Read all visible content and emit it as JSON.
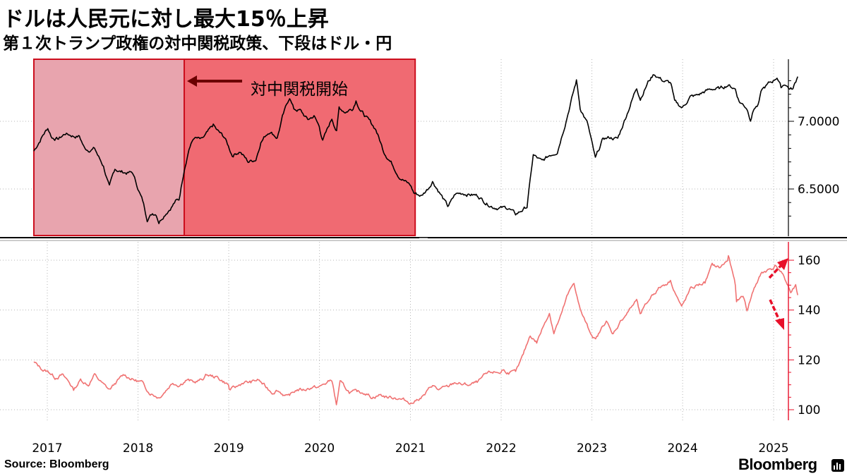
{
  "title": "ドルは人民元に対し最大15％上昇",
  "subtitle": "第１次トランプ政権の対中関税政策、下段はドル・円",
  "source": "Source:  Bloomberg",
  "brand": "Bloomberg",
  "colors": {
    "top_series": "#000000",
    "bottom_series": "#f07272",
    "shade_pre": "#e8a4ae",
    "shade_tariff": "#f06a72",
    "shade_border": "#cc0f1e",
    "annotation_arrow": "#6b0000",
    "right_arrows": "#e8102a"
  },
  "chart_data": [
    {
      "type": "line",
      "series": [
        {
          "name": "",
          "values_note": ""
        }
      ],
      "points": [
        [
          "2016-11-08",
          6.78
        ],
        [
          "2016-12-15",
          6.9
        ],
        [
          "2017-01-03",
          6.95
        ],
        [
          "2017-01-20",
          6.88
        ],
        [
          "2017-02-15",
          6.87
        ],
        [
          "2017-03-15",
          6.91
        ],
        [
          "2017-04-20",
          6.89
        ],
        [
          "2017-05-10",
          6.89
        ],
        [
          "2017-05-31",
          6.8
        ],
        [
          "2017-06-15",
          6.79
        ],
        [
          "2017-07-10",
          6.8
        ],
        [
          "2017-07-31",
          6.72
        ],
        [
          "2017-08-15",
          6.67
        ],
        [
          "2017-09-08",
          6.51
        ],
        [
          "2017-09-30",
          6.65
        ],
        [
          "2017-10-20",
          6.63
        ],
        [
          "2017-11-15",
          6.62
        ],
        [
          "2017-12-10",
          6.62
        ],
        [
          "2017-12-31",
          6.51
        ],
        [
          "2018-01-20",
          6.41
        ],
        [
          "2018-02-07",
          6.28
        ],
        [
          "2018-02-28",
          6.32
        ],
        [
          "2018-03-15",
          6.32
        ],
        [
          "2018-03-26",
          6.26
        ],
        [
          "2018-04-20",
          6.32
        ],
        [
          "2018-05-15",
          6.37
        ],
        [
          "2018-06-01",
          6.41
        ],
        [
          "2018-06-15",
          6.42
        ],
        [
          "2018-07-06",
          6.65
        ],
        [
          "2018-07-25",
          6.8
        ],
        [
          "2018-08-15",
          6.88
        ],
        [
          "2018-09-15",
          6.86
        ],
        [
          "2018-10-15",
          6.93
        ],
        [
          "2018-10-31",
          6.97
        ],
        [
          "2018-11-15",
          6.93
        ],
        [
          "2018-12-15",
          6.88
        ],
        [
          "2019-01-15",
          6.75
        ],
        [
          "2019-02-15",
          6.78
        ],
        [
          "2019-03-20",
          6.7
        ],
        [
          "2019-04-20",
          6.72
        ],
        [
          "2019-05-10",
          6.85
        ],
        [
          "2019-05-31",
          6.9
        ],
        [
          "2019-06-15",
          6.93
        ],
        [
          "2019-07-15",
          6.88
        ],
        [
          "2019-08-05",
          7.03
        ],
        [
          "2019-09-03",
          7.18
        ],
        [
          "2019-09-20",
          7.09
        ],
        [
          "2019-10-15",
          7.08
        ],
        [
          "2019-11-15",
          7.01
        ],
        [
          "2019-12-10",
          7.04
        ],
        [
          "2019-12-31",
          6.96
        ],
        [
          "2020-01-14",
          6.86
        ],
        [
          "2020-01-31",
          6.93
        ],
        [
          "2020-02-20",
          7.02
        ],
        [
          "2020-03-10",
          6.93
        ],
        [
          "2020-03-20",
          7.1
        ],
        [
          "2020-04-15",
          7.07
        ],
        [
          "2020-05-15",
          7.1
        ],
        [
          "2020-05-27",
          7.16
        ],
        [
          "2020-06-15",
          7.08
        ],
        [
          "2020-07-15",
          7.01
        ],
        [
          "2020-08-15",
          6.94
        ],
        [
          "2020-09-15",
          6.78
        ],
        [
          "2020-10-15",
          6.7
        ],
        [
          "2020-11-15",
          6.6
        ],
        [
          "2020-12-15",
          6.55
        ],
        [
          "2020-12-31",
          6.53
        ],
        [
          "2021-01-15",
          6.47
        ],
        [
          "2021-02-15",
          6.45
        ],
        [
          "2021-03-15",
          6.51
        ],
        [
          "2021-03-31",
          6.56
        ],
        [
          "2021-04-30",
          6.47
        ],
        [
          "2021-05-31",
          6.37
        ],
        [
          "2021-06-15",
          6.41
        ],
        [
          "2021-06-30",
          6.46
        ],
        [
          "2021-07-31",
          6.47
        ],
        [
          "2021-08-31",
          6.46
        ],
        [
          "2021-09-30",
          6.45
        ],
        [
          "2021-10-31",
          6.4
        ],
        [
          "2021-11-30",
          6.37
        ],
        [
          "2021-12-31",
          6.36
        ],
        [
          "2022-01-31",
          6.36
        ],
        [
          "2022-02-28",
          6.31
        ],
        [
          "2022-03-31",
          6.35
        ],
        [
          "2022-04-15",
          6.37
        ],
        [
          "2022-05-10",
          6.75
        ],
        [
          "2022-06-15",
          6.7
        ],
        [
          "2022-07-15",
          6.75
        ],
        [
          "2022-08-15",
          6.78
        ],
        [
          "2022-09-15",
          6.98
        ],
        [
          "2022-10-31",
          7.3
        ],
        [
          "2022-11-15",
          7.1
        ],
        [
          "2022-12-15",
          6.98
        ],
        [
          "2023-01-15",
          6.72
        ],
        [
          "2023-02-15",
          6.87
        ],
        [
          "2023-03-15",
          6.88
        ],
        [
          "2023-04-15",
          6.87
        ],
        [
          "2023-05-31",
          7.1
        ],
        [
          "2023-06-30",
          7.25
        ],
        [
          "2023-07-15",
          7.17
        ],
        [
          "2023-08-15",
          7.29
        ],
        [
          "2023-09-08",
          7.35
        ],
        [
          "2023-10-15",
          7.3
        ],
        [
          "2023-11-15",
          7.28
        ],
        [
          "2023-11-30",
          7.14
        ],
        [
          "2023-12-31",
          7.1
        ],
        [
          "2024-01-31",
          7.18
        ],
        [
          "2024-02-29",
          7.19
        ],
        [
          "2024-03-31",
          7.22
        ],
        [
          "2024-04-30",
          7.24
        ],
        [
          "2024-05-31",
          7.24
        ],
        [
          "2024-06-30",
          7.27
        ],
        [
          "2024-07-31",
          7.24
        ],
        [
          "2024-08-15",
          7.15
        ],
        [
          "2024-09-15",
          7.1
        ],
        [
          "2024-09-30",
          7.02
        ],
        [
          "2024-10-15",
          7.1
        ],
        [
          "2024-10-31",
          7.12
        ],
        [
          "2024-11-15",
          7.23
        ],
        [
          "2024-12-15",
          7.28
        ],
        [
          "2024-12-31",
          7.3
        ],
        [
          "2025-01-15",
          7.33
        ],
        [
          "2025-01-31",
          7.25
        ],
        [
          "2025-02-15",
          7.28
        ],
        [
          "2025-03-07",
          7.24
        ],
        [
          "2025-03-20",
          7.24
        ],
        [
          "2025-04-08",
          7.33
        ]
      ],
      "ylim": [
        6.23,
        7.45
      ],
      "y_ticks": [
        "7.0000",
        "6.5000"
      ],
      "shaded_periods": [
        {
          "start": "2016-11-08",
          "end": "2018-07-06",
          "label": ""
        },
        {
          "start": "2018-07-06",
          "end": "2021-01-20",
          "label": "対中関税開始"
        }
      ],
      "annotation": "対中関税開始",
      "grid": true
    },
    {
      "type": "line",
      "points": [
        [
          "2016-11-08",
          119
        ],
        [
          "2016-12-15",
          116
        ],
        [
          "2017-01-10",
          115
        ],
        [
          "2017-02-01",
          113
        ],
        [
          "2017-03-01",
          114
        ],
        [
          "2017-03-31",
          111
        ],
        [
          "2017-04-17",
          108
        ],
        [
          "2017-05-15",
          112
        ],
        [
          "2017-06-15",
          110
        ],
        [
          "2017-07-10",
          114
        ],
        [
          "2017-08-15",
          110
        ],
        [
          "2017-09-08",
          108
        ],
        [
          "2017-10-15",
          112
        ],
        [
          "2017-11-06",
          114
        ],
        [
          "2017-12-15",
          112
        ],
        [
          "2018-01-15",
          111
        ],
        [
          "2018-02-15",
          107
        ],
        [
          "2018-03-26",
          105
        ],
        [
          "2018-04-15",
          107
        ],
        [
          "2018-05-21",
          111
        ],
        [
          "2018-06-15",
          110
        ],
        [
          "2018-07-15",
          112
        ],
        [
          "2018-08-15",
          111
        ],
        [
          "2018-09-15",
          112
        ],
        [
          "2018-10-04",
          114
        ],
        [
          "2018-11-15",
          113
        ],
        [
          "2018-12-31",
          110
        ],
        [
          "2019-01-03",
          108
        ],
        [
          "2019-01-31",
          109
        ],
        [
          "2019-02-28",
          111
        ],
        [
          "2019-03-31",
          111
        ],
        [
          "2019-04-30",
          112
        ],
        [
          "2019-05-31",
          109
        ],
        [
          "2019-06-25",
          107
        ],
        [
          "2019-07-15",
          108
        ],
        [
          "2019-08-26",
          105
        ],
        [
          "2019-09-30",
          108
        ],
        [
          "2019-10-31",
          108
        ],
        [
          "2019-11-30",
          109
        ],
        [
          "2019-12-31",
          109
        ],
        [
          "2020-01-17",
          110
        ],
        [
          "2020-02-20",
          112
        ],
        [
          "2020-03-09",
          102
        ],
        [
          "2020-03-24",
          111
        ],
        [
          "2020-04-30",
          107
        ],
        [
          "2020-05-31",
          107
        ],
        [
          "2020-06-30",
          107
        ],
        [
          "2020-07-31",
          105
        ],
        [
          "2020-08-31",
          106
        ],
        [
          "2020-09-30",
          105
        ],
        [
          "2020-10-31",
          105
        ],
        [
          "2020-11-30",
          104
        ],
        [
          "2020-12-31",
          103
        ],
        [
          "2021-01-06",
          102.7
        ],
        [
          "2021-02-28",
          106
        ],
        [
          "2021-03-31",
          110
        ],
        [
          "2021-04-20",
          108
        ],
        [
          "2021-05-31",
          109
        ],
        [
          "2021-06-30",
          111
        ],
        [
          "2021-07-31",
          110
        ],
        [
          "2021-08-31",
          110
        ],
        [
          "2021-09-30",
          111
        ],
        [
          "2021-10-31",
          114
        ],
        [
          "2021-11-24",
          115
        ],
        [
          "2021-12-31",
          115
        ],
        [
          "2022-01-04",
          116
        ],
        [
          "2022-01-31",
          115
        ],
        [
          "2022-02-28",
          115
        ],
        [
          "2022-03-15",
          118
        ],
        [
          "2022-03-31",
          122
        ],
        [
          "2022-04-28",
          130
        ],
        [
          "2022-05-24",
          127
        ],
        [
          "2022-06-30",
          136
        ],
        [
          "2022-07-14",
          139
        ],
        [
          "2022-08-01",
          131
        ],
        [
          "2022-08-31",
          138
        ],
        [
          "2022-09-22",
          145
        ],
        [
          "2022-10-21",
          151
        ],
        [
          "2022-11-15",
          140
        ],
        [
          "2022-12-20",
          132
        ],
        [
          "2023-01-16",
          128
        ],
        [
          "2023-02-28",
          136
        ],
        [
          "2023-03-24",
          130
        ],
        [
          "2023-04-30",
          136
        ],
        [
          "2023-05-31",
          140
        ],
        [
          "2023-06-30",
          144
        ],
        [
          "2023-07-14",
          138
        ],
        [
          "2023-08-31",
          146
        ],
        [
          "2023-09-30",
          149
        ],
        [
          "2023-10-31",
          151
        ],
        [
          "2023-11-13",
          151.9
        ],
        [
          "2023-12-28",
          141
        ],
        [
          "2024-01-31",
          148
        ],
        [
          "2024-02-29",
          150
        ],
        [
          "2024-03-31",
          151
        ],
        [
          "2024-04-29",
          158
        ],
        [
          "2024-05-31",
          157
        ],
        [
          "2024-06-30",
          160
        ],
        [
          "2024-07-03",
          161.9
        ],
        [
          "2024-07-31",
          150
        ],
        [
          "2024-08-05",
          143
        ],
        [
          "2024-08-31",
          146
        ],
        [
          "2024-09-16",
          140
        ],
        [
          "2024-10-15",
          149
        ],
        [
          "2024-10-31",
          152
        ],
        [
          "2024-11-15",
          155
        ],
        [
          "2024-12-31",
          157
        ],
        [
          "2025-01-10",
          158
        ],
        [
          "2025-01-31",
          155
        ],
        [
          "2025-02-28",
          150
        ],
        [
          "2025-03-11",
          147
        ],
        [
          "2025-03-31",
          150
        ],
        [
          "2025-04-08",
          146
        ]
      ],
      "ylim": [
        96,
        166
      ],
      "y_ticks": [
        "160",
        "140",
        "120",
        "100"
      ],
      "grid": true
    }
  ],
  "x_axis": {
    "tick_labels": [
      "2017",
      "2018",
      "2019",
      "2020",
      "2021",
      "2022",
      "2023",
      "2024",
      "2025"
    ]
  }
}
